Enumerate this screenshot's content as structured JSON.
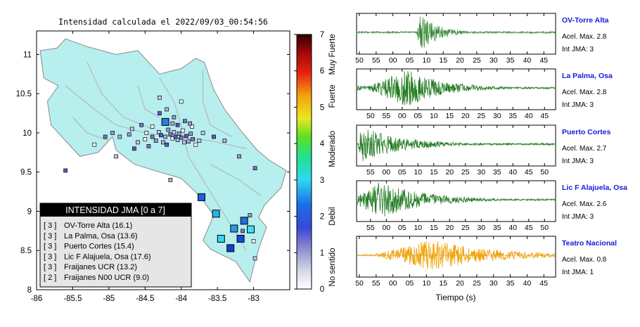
{
  "map": {
    "title": "Intensidad calculada el 2022/09/03_00:54:56",
    "lon_ticks": [
      "-86",
      "-85.5",
      "-85",
      "-84.5",
      "-84",
      "-83.5",
      "-83"
    ],
    "lat_ticks": [
      "8",
      "8.5",
      "9",
      "9.5",
      "10",
      "10.5",
      "11"
    ],
    "land_color": "#b7eeee",
    "legend": {
      "header": "INTENSIDAD JMA [0 a 7]",
      "entries": [
        {
          "int": "[ 3 ]",
          "label": "OV-Torre Alta (16.1)"
        },
        {
          "int": "[ 3 ]",
          "label": "La Palma, Osa (13.6)"
        },
        {
          "int": "[ 3 ]",
          "label": "Puerto Cortes (15.4)"
        },
        {
          "int": "[ 3 ]",
          "label": "Lic F Alajuela, Osa (17.6)"
        },
        {
          "int": "[ 3 ]",
          "label": "Fraijanes UCR (13.2)"
        },
        {
          "int": "[ 2 ]",
          "label": "Fraijanes N00 UCR (9.0)"
        }
      ]
    },
    "stations_large": [
      {
        "lon": -84.22,
        "lat": 10.14,
        "color": "#2a7de0"
      },
      {
        "lon": -83.72,
        "lat": 9.18,
        "color": "#1c5fe0"
      },
      {
        "lon": -83.52,
        "lat": 8.97,
        "color": "#22b8e8"
      },
      {
        "lon": -83.13,
        "lat": 8.88,
        "color": "#1f6fe0"
      },
      {
        "lon": -83.27,
        "lat": 8.78,
        "color": "#2a9ae6"
      },
      {
        "lon": -83.04,
        "lat": 8.77,
        "color": "#3fe0f0"
      },
      {
        "lon": -83.45,
        "lat": 8.65,
        "color": "#38d4f0"
      },
      {
        "lon": -83.18,
        "lat": 8.65,
        "color": "#1a48d8"
      },
      {
        "lon": -83.32,
        "lat": 8.53,
        "color": "#1a3bd0"
      }
    ],
    "stations_small": [
      [
        -84.72,
        9.98
      ],
      [
        -84.55,
        10.1
      ],
      [
        -84.4,
        10.08
      ],
      [
        -84.31,
        10.01
      ],
      [
        -84.28,
        9.97
      ],
      [
        -84.22,
        9.95
      ],
      [
        -84.18,
        10.04
      ],
      [
        -84.15,
        9.98
      ],
      [
        -84.12,
        9.93
      ],
      [
        -84.1,
        10.01
      ],
      [
        -84.08,
        9.95
      ],
      [
        -84.05,
        9.91
      ],
      [
        -84.03,
        9.99
      ],
      [
        -84.0,
        9.94
      ],
      [
        -83.98,
        10.03
      ],
      [
        -83.96,
        9.88
      ],
      [
        -83.93,
        9.96
      ],
      [
        -83.9,
        9.89
      ],
      [
        -83.87,
        9.99
      ],
      [
        -83.84,
        9.92
      ],
      [
        -83.8,
        9.85
      ],
      [
        -83.75,
        9.9
      ],
      [
        -84.2,
        9.85
      ],
      [
        -84.25,
        9.88
      ],
      [
        -84.35,
        9.9
      ],
      [
        -84.45,
        9.83
      ],
      [
        -84.5,
        9.92
      ],
      [
        -84.6,
        9.88
      ],
      [
        -84.65,
        9.8
      ],
      [
        -84.85,
        9.95
      ],
      [
        -84.95,
        10.0
      ],
      [
        -85.05,
        9.95
      ],
      [
        -85.2,
        9.85
      ],
      [
        -84.9,
        9.7
      ],
      [
        -84.3,
        10.25
      ],
      [
        -84.2,
        10.3
      ],
      [
        -84.1,
        10.2
      ],
      [
        -83.95,
        10.15
      ],
      [
        -83.85,
        10.08
      ],
      [
        -83.7,
        10.0
      ],
      [
        -83.55,
        9.95
      ],
      [
        -83.4,
        9.9
      ],
      [
        -83.2,
        9.7
      ],
      [
        -82.98,
        9.55
      ],
      [
        -84.0,
        10.4
      ],
      [
        -84.3,
        10.45
      ],
      [
        -85.6,
        9.52
      ],
      [
        -84.15,
        9.4
      ],
      [
        -83.05,
        8.95
      ],
      [
        -83.15,
        8.75
      ],
      [
        -83.0,
        8.62
      ],
      [
        -82.98,
        8.4
      ],
      [
        -84.05,
        10.1
      ],
      [
        -84.12,
        10.12
      ],
      [
        -83.88,
        10.12
      ],
      [
        -84.4,
        9.95
      ],
      [
        -84.48,
        10.0
      ],
      [
        -84.68,
        10.05
      ]
    ]
  },
  "colorbar": {
    "ticks": [
      "0",
      "1",
      "2",
      "3",
      "4",
      "5",
      "6",
      "7"
    ],
    "labels": [
      "No sentido",
      "Debil",
      "Moderado",
      "Fuerte",
      "Muy Fuerte"
    ]
  },
  "traces": [
    {
      "name": "OV-Torre Alta",
      "acel": "Acel. Max. 2.8",
      "int": "Int JMA: 3",
      "ticks": [
        "50",
        "55",
        "00",
        "05",
        "10",
        "15",
        "20",
        "25",
        "30",
        "35",
        "40",
        "45"
      ],
      "first_tick_frac": 0.014,
      "color": "#3a8c3a",
      "onset_frac": 0.3,
      "peak_frac": 0.32,
      "decay": 0.09,
      "amp": 1.0,
      "pre_noise": 0.03
    },
    {
      "name": "La Palma, Osa",
      "acel": "Acel. Max. 2.8",
      "int": "Int JMA: 3",
      "ticks": [
        "50",
        "55",
        "00",
        "05",
        "10",
        "15",
        "20",
        "25",
        "30",
        "35",
        "40",
        "45"
      ],
      "first_tick_frac": 0.07,
      "color": "#1e7a1e",
      "onset_frac": 0.06,
      "peak_frac": 0.25,
      "decay": 0.18,
      "amp": 1.0,
      "pre_noise": 0.12
    },
    {
      "name": "Puerto Cortes",
      "acel": "Acel. Max. 2.7",
      "int": "Int JMA: 3",
      "ticks": [
        "55",
        "00",
        "05",
        "10",
        "15",
        "20",
        "25",
        "30",
        "35",
        "40",
        "45",
        "50"
      ],
      "first_tick_frac": 0.07,
      "color": "#1e7a1e",
      "onset_frac": 0.0,
      "peak_frac": 0.02,
      "decay": 0.2,
      "amp": 1.0,
      "pre_noise": 0.0
    },
    {
      "name": "Lic F Alajuela, Osa",
      "acel": "Acel. Max. 2.6",
      "int": "Int JMA: 3",
      "ticks": [
        "55",
        "00",
        "05",
        "10",
        "15",
        "20",
        "25",
        "30",
        "35",
        "40",
        "45",
        "50"
      ],
      "first_tick_frac": 0.07,
      "color": "#1e7a1e",
      "onset_frac": 0.0,
      "peak_frac": 0.11,
      "decay": 0.22,
      "amp": 1.0,
      "pre_noise": 0.3
    },
    {
      "name": "Teatro Nacional",
      "acel": "Acel. Max. 0.8",
      "int": "Int JMA: 1",
      "ticks": [
        "50",
        "55",
        "00",
        "05",
        "10",
        "15",
        "20",
        "25",
        "30",
        "35",
        "40",
        "45"
      ],
      "first_tick_frac": 0.014,
      "color": "#f2a000",
      "onset_frac": 0.08,
      "peak_frac": 0.38,
      "decay": 0.3,
      "amp": 0.85,
      "pre_noise": 0.04
    }
  ],
  "xlabel": "Tiempo (s)",
  "chart_data": {
    "type": "scatter",
    "title": "Intensidad calculada el 2022/09/03_00:54:56",
    "xlabel": "",
    "ylabel": "",
    "xlim": [
      -86,
      -82.5
    ],
    "ylim": [
      8,
      11.3
    ],
    "colorbar_range": [
      0,
      7
    ],
    "series": [
      {
        "name": "OV-Torre Alta",
        "intensity": 3,
        "pga": 2.8
      },
      {
        "name": "La Palma, Osa",
        "intensity": 3,
        "pga": 2.8
      },
      {
        "name": "Puerto Cortes",
        "intensity": 3,
        "pga": 2.7
      },
      {
        "name": "Lic F Alajuela, Osa",
        "intensity": 3,
        "pga": 2.6
      },
      {
        "name": "Teatro Nacional",
        "intensity": 1,
        "pga": 0.8
      }
    ]
  }
}
